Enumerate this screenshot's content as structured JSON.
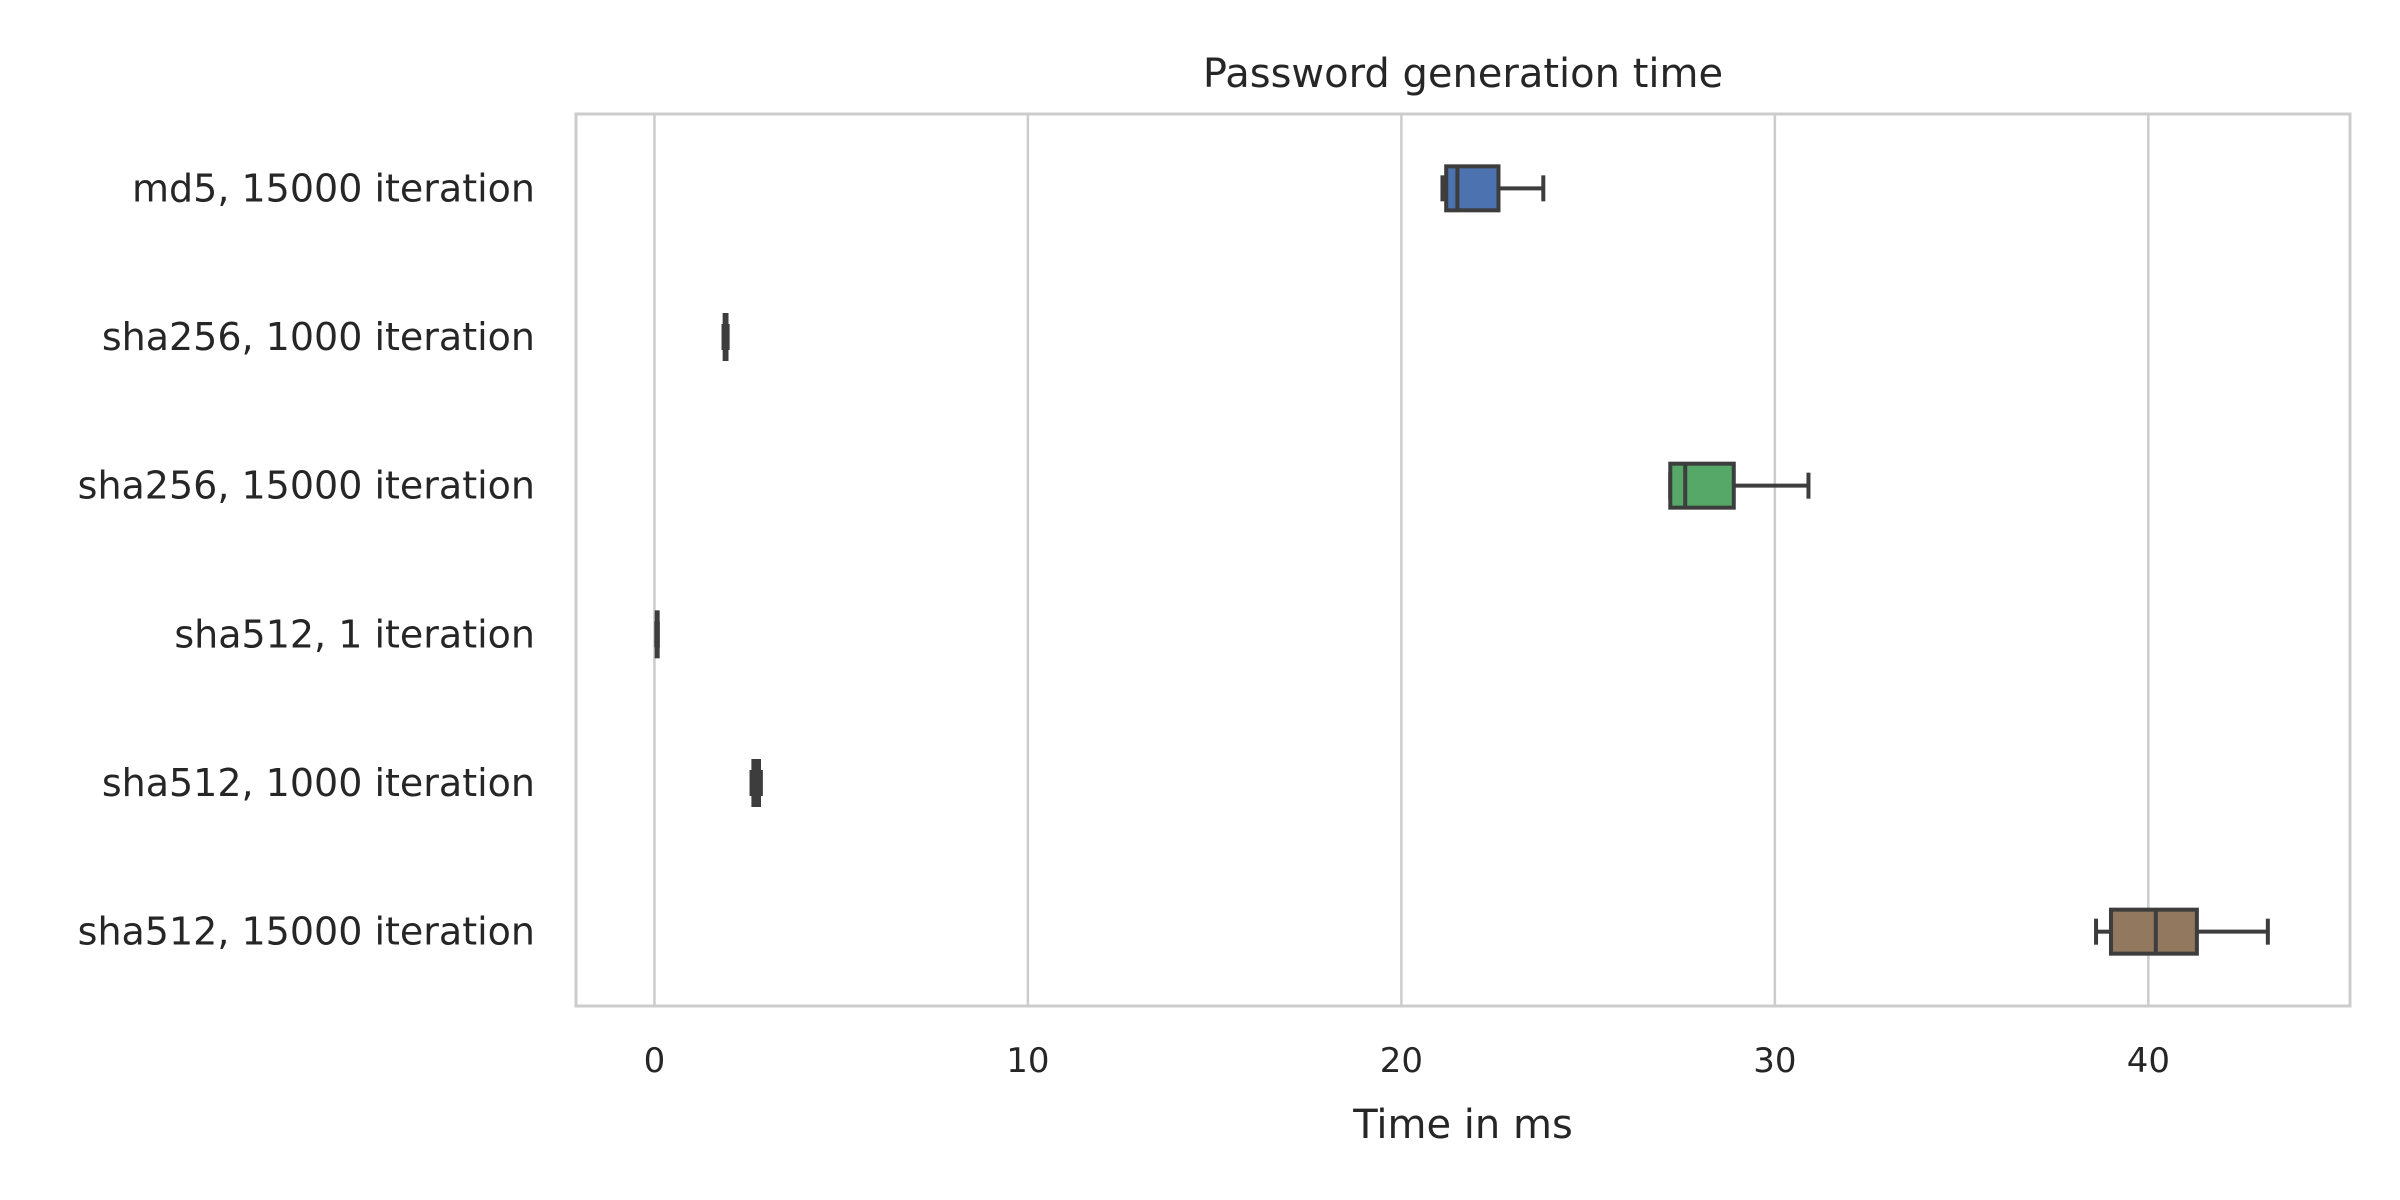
{
  "chart_data": {
    "type": "boxplot",
    "orientation": "horizontal",
    "title": "Password generation time",
    "xlabel": "Time in ms",
    "ylabel": "",
    "xlim": [
      -2.1,
      45.4
    ],
    "xticks": [
      0,
      10,
      20,
      30,
      40
    ],
    "grid": "vertical",
    "legend": "none",
    "categories": [
      "md5, 15000 iteration",
      "sha256, 1000 iteration",
      "sha256, 15000 iteration",
      "sha512, 1 iteration",
      "sha512, 1000 iteration",
      "sha512, 15000 iteration"
    ],
    "boxes": [
      {
        "min": 21.1,
        "q1": 21.2,
        "median": 21.5,
        "q3": 22.6,
        "max": 23.8,
        "color": "#4c72b0"
      },
      {
        "min": 1.85,
        "q1": 1.88,
        "median": 1.9,
        "q3": 1.93,
        "max": 1.96,
        "color": "#dd8452"
      },
      {
        "min": 27.2,
        "q1": 27.2,
        "median": 27.6,
        "q3": 28.9,
        "max": 30.9,
        "color": "#55a868"
      },
      {
        "min": 0.05,
        "q1": 0.06,
        "median": 0.07,
        "q3": 0.08,
        "max": 0.09,
        "color": "#c44e52"
      },
      {
        "min": 2.6,
        "q1": 2.65,
        "median": 2.7,
        "q3": 2.8,
        "max": 2.85,
        "color": "#8172b3"
      },
      {
        "min": 38.6,
        "q1": 39.0,
        "median": 40.2,
        "q3": 41.3,
        "max": 43.2,
        "color": "#937860"
      }
    ],
    "colors": {
      "grid": "#cccccc",
      "frame": "#cccccc",
      "box_edge": "#3d3d3d",
      "text": "#262626"
    }
  }
}
